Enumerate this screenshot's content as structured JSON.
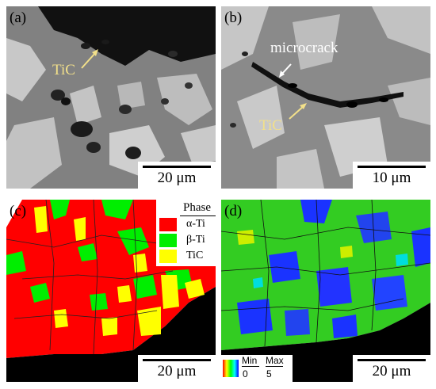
{
  "panels": {
    "a": {
      "label": "(a)",
      "scale": "20 μm",
      "annotation": "TiC"
    },
    "b": {
      "label": "(b)",
      "scale": "10 μm",
      "annotation_crack": "microcrack",
      "annotation_tic": "TiC"
    },
    "c": {
      "label": "(c)",
      "scale": "20 μm",
      "legend": {
        "title": "Phase",
        "items": [
          {
            "label": "α-Ti",
            "color": "#ff0000"
          },
          {
            "label": "β-Ti",
            "color": "#00ee00"
          },
          {
            "label": "TiC",
            "color": "#ffff00"
          }
        ]
      }
    },
    "d": {
      "label": "(d)",
      "scale": "20 μm",
      "colorbar": {
        "min_label": "Min",
        "max_label": "Max",
        "min_value": "0",
        "max_value": "5"
      }
    }
  },
  "colors": {
    "arrow": "#f2e08a",
    "annotation_text": "#f2e08a",
    "crack_text": "#ffffff"
  }
}
